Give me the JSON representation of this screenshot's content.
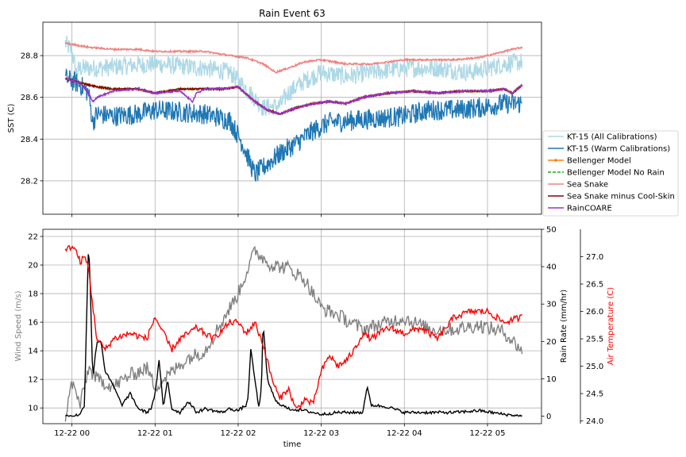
{
  "chart_data": [
    {
      "type": "line",
      "title": "Rain Event 63",
      "xlabel": "",
      "ylabel": "SST (C)",
      "ylim": [
        28.04,
        28.96
      ],
      "yticks": [
        28.2,
        28.4,
        28.6,
        28.8
      ],
      "x_tick_labels": [
        "12-22 00",
        "12-22 01",
        "12-22 02",
        "12-22 03",
        "12-22 04",
        "12-22 05"
      ],
      "x_tick_hours": [
        0,
        1,
        2,
        3,
        4,
        5
      ],
      "xlim_hours": [
        -0.35,
        5.65
      ],
      "grid": true,
      "legend_position": "outside-right",
      "series": [
        {
          "name": "KT-15 (All Calibrations)",
          "color": "#add8e6",
          "noise": 0.045,
          "x": [
            -0.08,
            0.0,
            0.05,
            0.1,
            0.3,
            0.6,
            1.0,
            1.3,
            1.6,
            1.9,
            2.1,
            2.3,
            2.5,
            2.6,
            2.8,
            3.0,
            3.3,
            3.6,
            4.0,
            4.4,
            4.8,
            5.2,
            5.42
          ],
          "y": [
            28.86,
            28.82,
            28.72,
            28.74,
            28.74,
            28.75,
            28.76,
            28.75,
            28.74,
            28.72,
            28.64,
            28.55,
            28.56,
            28.62,
            28.68,
            28.72,
            28.7,
            28.72,
            28.74,
            28.74,
            28.72,
            28.76,
            28.77
          ]
        },
        {
          "name": "KT-15 (Warm Calibrations)",
          "color": "#1f77b4",
          "noise": 0.05,
          "x": [
            -0.08,
            0.0,
            0.1,
            0.2,
            0.25,
            0.3,
            0.5,
            0.8,
            1.0,
            1.3,
            1.6,
            1.9,
            2.05,
            2.2,
            2.35,
            2.5,
            2.7,
            2.9,
            3.1,
            3.4,
            3.7,
            4.0,
            4.3,
            4.6,
            4.9,
            5.2,
            5.42
          ],
          "y": [
            28.69,
            28.68,
            28.66,
            28.62,
            28.48,
            28.52,
            28.51,
            28.52,
            28.54,
            28.53,
            28.52,
            28.49,
            28.38,
            28.23,
            28.28,
            28.33,
            28.38,
            28.44,
            28.48,
            28.49,
            28.5,
            28.51,
            28.54,
            28.54,
            28.55,
            28.57,
            28.57
          ]
        },
        {
          "name": "Bellenger Model",
          "color": "#ff7f0e",
          "marker": true,
          "x": [
            -0.08,
            0.1,
            0.3,
            0.5,
            0.8,
            1.0,
            1.3,
            1.6,
            1.8,
            2.0,
            2.2,
            2.35,
            2.5,
            2.7,
            2.9,
            3.1,
            3.3,
            3.5,
            3.8,
            4.1,
            4.4,
            4.7,
            5.0,
            5.2,
            5.3,
            5.42
          ],
          "y": [
            28.69,
            28.67,
            28.65,
            28.64,
            28.64,
            28.62,
            28.64,
            28.64,
            28.64,
            28.65,
            28.58,
            28.54,
            28.52,
            28.55,
            28.57,
            28.58,
            28.57,
            28.6,
            28.62,
            28.63,
            28.62,
            28.63,
            28.63,
            28.64,
            28.62,
            28.66
          ]
        },
        {
          "name": "Bellenger Model No Rain",
          "color": "#2ca02c",
          "dashed": true,
          "x": [
            -0.08,
            0.1,
            0.3,
            0.5,
            0.8,
            1.0,
            1.3,
            1.6,
            1.8,
            2.0,
            2.2,
            2.35,
            2.5,
            2.7,
            2.9,
            3.1,
            3.3,
            3.5,
            3.8,
            4.1,
            4.4,
            4.7,
            5.0,
            5.2,
            5.3,
            5.42
          ],
          "y": [
            28.69,
            28.67,
            28.65,
            28.64,
            28.64,
            28.62,
            28.64,
            28.64,
            28.64,
            28.65,
            28.58,
            28.54,
            28.52,
            28.55,
            28.57,
            28.58,
            28.57,
            28.6,
            28.62,
            28.63,
            28.62,
            28.63,
            28.63,
            28.64,
            28.62,
            28.66
          ]
        },
        {
          "name": "Sea Snake",
          "color": "#f08080",
          "x": [
            -0.08,
            0.2,
            0.5,
            0.8,
            1.0,
            1.3,
            1.6,
            1.9,
            2.1,
            2.3,
            2.45,
            2.6,
            2.8,
            3.0,
            3.3,
            3.6,
            4.0,
            4.3,
            4.6,
            4.9,
            5.1,
            5.3,
            5.42
          ],
          "y": [
            28.86,
            28.84,
            28.83,
            28.83,
            28.82,
            28.82,
            28.82,
            28.8,
            28.79,
            28.76,
            28.72,
            28.74,
            28.77,
            28.78,
            28.76,
            28.76,
            28.78,
            28.78,
            28.78,
            28.79,
            28.81,
            28.83,
            28.84
          ]
        },
        {
          "name": "Sea Snake minus Cool-Skin",
          "color": "#8b0000",
          "x": [
            -0.08,
            0.1,
            0.3,
            0.5,
            0.8,
            1.0,
            1.3,
            1.6,
            1.8,
            2.0,
            2.2,
            2.35,
            2.5,
            2.7,
            2.9,
            3.1,
            3.3,
            3.5,
            3.8,
            4.1,
            4.4,
            4.7,
            5.0,
            5.2,
            5.3,
            5.42
          ],
          "y": [
            28.69,
            28.67,
            28.65,
            28.64,
            28.64,
            28.62,
            28.64,
            28.64,
            28.64,
            28.65,
            28.58,
            28.54,
            28.52,
            28.55,
            28.57,
            28.58,
            28.57,
            28.6,
            28.62,
            28.63,
            28.62,
            28.63,
            28.63,
            28.64,
            28.62,
            28.66
          ]
        },
        {
          "name": "RainCOARE",
          "color": "#9932cc",
          "x": [
            -0.08,
            0.1,
            0.2,
            0.25,
            0.3,
            0.5,
            0.8,
            1.0,
            1.3,
            1.45,
            1.5,
            1.6,
            1.8,
            2.0,
            2.2,
            2.35,
            2.5,
            2.7,
            2.9,
            3.1,
            3.3,
            3.5,
            3.8,
            4.1,
            4.4,
            4.7,
            5.0,
            5.2,
            5.3,
            5.42
          ],
          "y": [
            28.69,
            28.67,
            28.62,
            28.58,
            28.6,
            28.63,
            28.64,
            28.62,
            28.63,
            28.58,
            28.62,
            28.64,
            28.64,
            28.65,
            28.58,
            28.54,
            28.52,
            28.55,
            28.57,
            28.58,
            28.57,
            28.6,
            28.62,
            28.63,
            28.62,
            28.63,
            28.63,
            28.64,
            28.62,
            28.66
          ]
        }
      ]
    },
    {
      "type": "line",
      "title": "",
      "xlabel": "time",
      "x_tick_labels": [
        "12-22 00",
        "12-22 01",
        "12-22 02",
        "12-22 03",
        "12-22 04",
        "12-22 05"
      ],
      "x_tick_hours": [
        0,
        1,
        2,
        3,
        4,
        5
      ],
      "xlim_hours": [
        -0.35,
        5.65
      ],
      "grid": true,
      "axes": {
        "left": {
          "label": "Wind Speed (m/s)",
          "label_color": "#808080",
          "ylim": [
            8.9,
            22.5
          ],
          "ticks": [
            10,
            12,
            14,
            16,
            18,
            20,
            22
          ]
        },
        "right": {
          "label": "Rain Rate (mm/hr)",
          "label_color": "#000000",
          "ylim": [
            -2,
            50
          ],
          "ticks": [
            0,
            10,
            20,
            30,
            40,
            50
          ]
        },
        "right2": {
          "label": "Air Temperature (C)",
          "label_color": "#ff0000",
          "ylim": [
            23.95,
            27.5
          ],
          "ticks": [
            24.0,
            24.5,
            25.0,
            25.5,
            26.0,
            26.5,
            27.0
          ]
        }
      },
      "series": [
        {
          "name": "Wind Speed",
          "axis": "left",
          "color": "#808080",
          "noise": 0.5,
          "x": [
            -0.08,
            0.0,
            0.1,
            0.2,
            0.3,
            0.5,
            0.7,
            0.9,
            1.0,
            1.2,
            1.4,
            1.6,
            1.8,
            2.0,
            2.1,
            2.2,
            2.3,
            2.4,
            2.6,
            2.8,
            3.0,
            3.2,
            3.5,
            3.8,
            4.0,
            4.3,
            4.6,
            4.9,
            5.2,
            5.42
          ],
          "y": [
            9.3,
            11.8,
            10.2,
            12.8,
            12.0,
            11.5,
            12.3,
            12.8,
            11.5,
            12.5,
            13.5,
            14.0,
            16.0,
            18.0,
            19.5,
            21.0,
            20.5,
            20.0,
            19.8,
            19.0,
            17.0,
            16.5,
            15.5,
            16.0,
            16.3,
            15.5,
            15.5,
            15.8,
            15.3,
            14.0
          ]
        },
        {
          "name": "Rain Rate",
          "axis": "right",
          "color": "#000000",
          "noise": 0.4,
          "x": [
            -0.08,
            0.0,
            0.1,
            0.15,
            0.2,
            0.22,
            0.25,
            0.3,
            0.35,
            0.4,
            0.5,
            0.6,
            0.7,
            0.8,
            0.9,
            0.95,
            1.0,
            1.05,
            1.1,
            1.15,
            1.2,
            1.3,
            1.4,
            1.5,
            1.6,
            1.8,
            1.9,
            2.0,
            2.1,
            2.12,
            2.15,
            2.2,
            2.25,
            2.28,
            2.3,
            2.35,
            2.45,
            2.6,
            2.8,
            3.0,
            3.2,
            3.5,
            3.55,
            3.6,
            3.8,
            4.0,
            4.3,
            4.6,
            4.9,
            5.2,
            5.42
          ],
          "y": [
            0.0,
            0.0,
            0.5,
            3.0,
            47.0,
            35.0,
            10.0,
            20.0,
            20.0,
            12.0,
            8.0,
            3.0,
            6.0,
            2.0,
            1.0,
            2.0,
            6.0,
            15.0,
            2.0,
            10.0,
            2.0,
            1.0,
            4.0,
            1.0,
            2.0,
            1.0,
            2.0,
            1.5,
            3.0,
            5.0,
            18.0,
            10.0,
            2.0,
            8.0,
            25.0,
            10.0,
            4.0,
            2.0,
            1.5,
            0.5,
            1.0,
            1.0,
            8.0,
            3.0,
            2.5,
            1.0,
            1.0,
            1.0,
            1.5,
            0.5,
            0.0
          ]
        },
        {
          "name": "Air Temperature",
          "axis": "right2",
          "color": "#ff0000",
          "noise": 0.06,
          "x": [
            -0.08,
            0.0,
            0.05,
            0.1,
            0.15,
            0.2,
            0.25,
            0.3,
            0.4,
            0.5,
            0.7,
            0.9,
            1.0,
            1.1,
            1.2,
            1.3,
            1.5,
            1.7,
            1.9,
            2.0,
            2.1,
            2.2,
            2.3,
            2.4,
            2.5,
            2.6,
            2.7,
            2.8,
            2.9,
            3.0,
            3.1,
            3.2,
            3.3,
            3.4,
            3.5,
            3.6,
            3.8,
            4.0,
            4.2,
            4.4,
            4.6,
            4.8,
            5.0,
            5.2,
            5.42
          ],
          "y": [
            27.1,
            27.2,
            27.1,
            26.9,
            27.0,
            26.8,
            26.1,
            25.5,
            25.3,
            25.5,
            25.6,
            25.5,
            25.9,
            25.6,
            25.3,
            25.5,
            25.7,
            25.5,
            25.8,
            25.8,
            25.6,
            25.8,
            25.4,
            24.8,
            24.4,
            24.6,
            24.2,
            24.4,
            24.3,
            24.9,
            25.2,
            25.0,
            25.1,
            25.3,
            25.6,
            25.5,
            25.7,
            25.6,
            25.7,
            25.5,
            25.9,
            26.0,
            26.0,
            25.8,
            25.9
          ]
        }
      ]
    }
  ]
}
